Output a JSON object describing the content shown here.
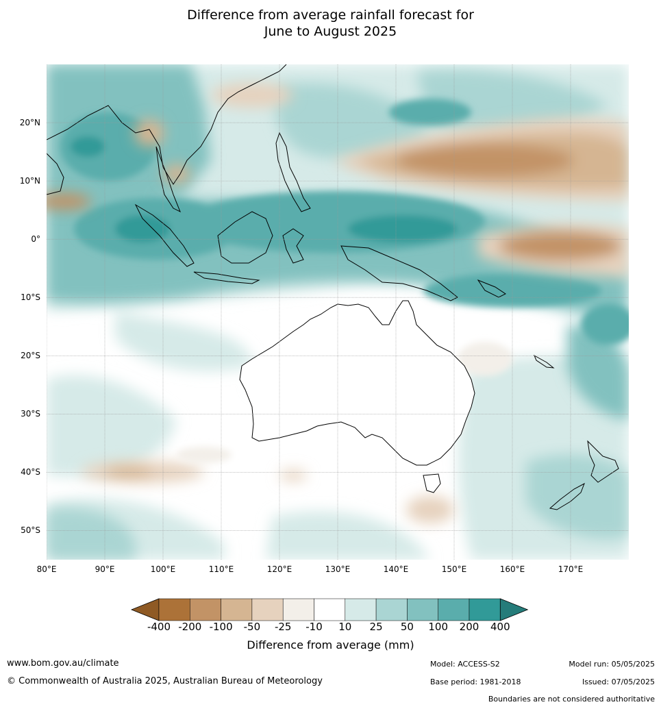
{
  "title": {
    "line1": "Difference from average rainfall forecast for",
    "line2": "June to August 2025"
  },
  "map": {
    "lat_labels": [
      "20°N",
      "10°N",
      "0°",
      "10°S",
      "20°S",
      "30°S",
      "40°S",
      "50°S"
    ],
    "lon_labels": [
      "80°E",
      "90°E",
      "100°E",
      "110°E",
      "120°E",
      "130°E",
      "140°E",
      "150°E",
      "160°E",
      "170°E"
    ],
    "extent": {
      "lon": [
        80,
        180
      ],
      "lat": [
        -55,
        30
      ]
    },
    "regions_description_none": ""
  },
  "colorbar": {
    "tick_labels": [
      "-400",
      "-200",
      "-100",
      "-50",
      "-25",
      "-10",
      "10",
      "25",
      "50",
      "100",
      "200",
      "400"
    ],
    "colors": [
      "#8f5a24",
      "#ac7238",
      "#c29366",
      "#d5b592",
      "#e6d2be",
      "#f3efe9",
      "#ffffff",
      "#d6eae8",
      "#aad5d3",
      "#82c1bf",
      "#5aadac",
      "#319a98",
      "#257c7a"
    ],
    "title": "Difference from average (mm)"
  },
  "footer": {
    "website": "www.bom.gov.au/climate",
    "copyright": "© Commonwealth of Australia 2025, Australian Bureau of Meteorology",
    "model": "Model: ACCESS-S2",
    "base_period": "Base period: 1981-2018",
    "model_run": "Model run: 05/05/2025",
    "issued": "Issued: 07/05/2025",
    "disclaimer": "Boundaries are not considered authoritative"
  }
}
